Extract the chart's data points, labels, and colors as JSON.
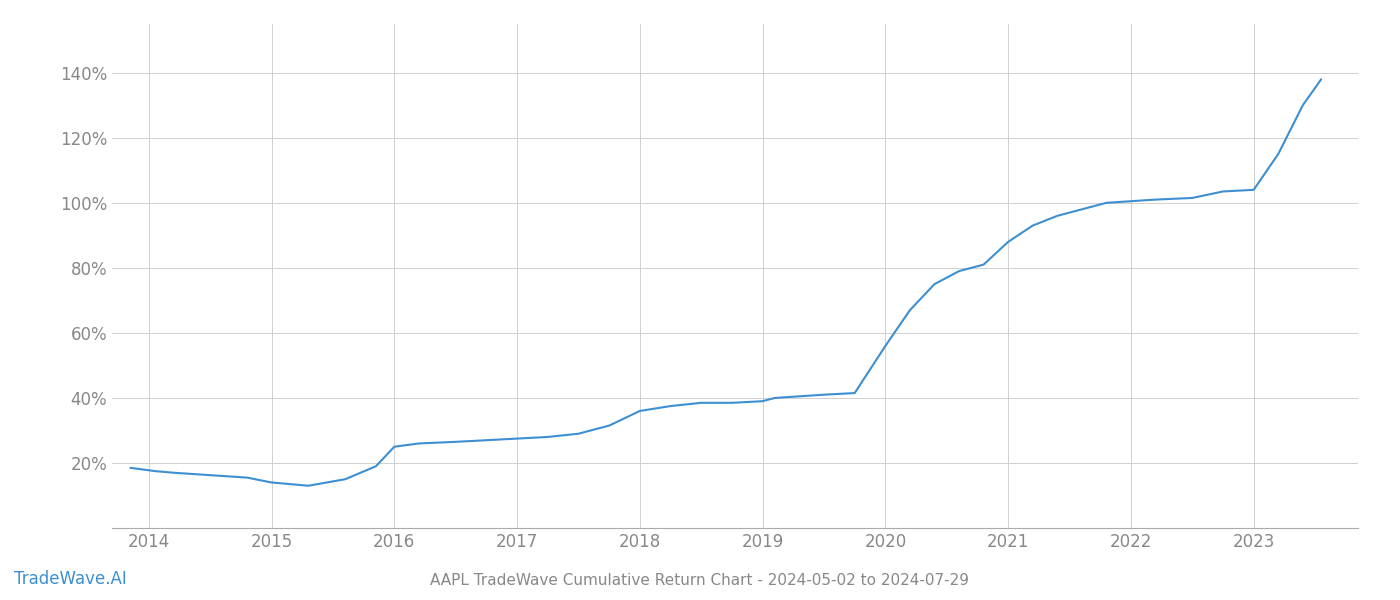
{
  "title": "AAPL TradeWave Cumulative Return Chart - 2024-05-02 to 2024-07-29",
  "watermark": "TradeWave.AI",
  "line_color": "#3d8fd1",
  "background_color": "#ffffff",
  "grid_color": "#d0d0d0",
  "x_years": [
    2014,
    2015,
    2016,
    2017,
    2018,
    2019,
    2020,
    2021,
    2022,
    2023
  ],
  "x_values": [
    2013.85,
    2013.95,
    2014.05,
    2014.2,
    2014.4,
    2014.6,
    2014.8,
    2015.0,
    2015.15,
    2015.3,
    2015.6,
    2015.85,
    2016.0,
    2016.2,
    2016.5,
    2016.75,
    2017.0,
    2017.25,
    2017.5,
    2017.75,
    2018.0,
    2018.25,
    2018.5,
    2018.75,
    2019.0,
    2019.05,
    2019.1,
    2019.3,
    2019.5,
    2019.75,
    2020.0,
    2020.2,
    2020.4,
    2020.6,
    2020.8,
    2021.0,
    2021.2,
    2021.4,
    2021.6,
    2021.8,
    2022.0,
    2022.2,
    2022.5,
    2022.75,
    2023.0,
    2023.2,
    2023.4,
    2023.55
  ],
  "y_values": [
    18.5,
    18.0,
    17.5,
    17.0,
    16.5,
    16.0,
    15.5,
    14.0,
    13.5,
    13.0,
    15.0,
    19.0,
    25.0,
    26.0,
    26.5,
    27.0,
    27.5,
    28.0,
    29.0,
    31.5,
    36.0,
    37.5,
    38.5,
    38.5,
    39.0,
    39.5,
    40.0,
    40.5,
    41.0,
    41.5,
    56.0,
    67.0,
    75.0,
    79.0,
    81.0,
    88.0,
    93.0,
    96.0,
    98.0,
    100.0,
    100.5,
    101.0,
    101.5,
    103.5,
    104.0,
    115.0,
    130.0,
    138.0
  ],
  "ylim": [
    0,
    155
  ],
  "yticks": [
    20,
    40,
    60,
    80,
    100,
    120,
    140
  ],
  "xlim": [
    2013.7,
    2023.85
  ],
  "title_fontsize": 11,
  "watermark_fontsize": 12,
  "tick_label_color": "#888888",
  "title_color": "#888888",
  "watermark_color": "#3d8fd1"
}
